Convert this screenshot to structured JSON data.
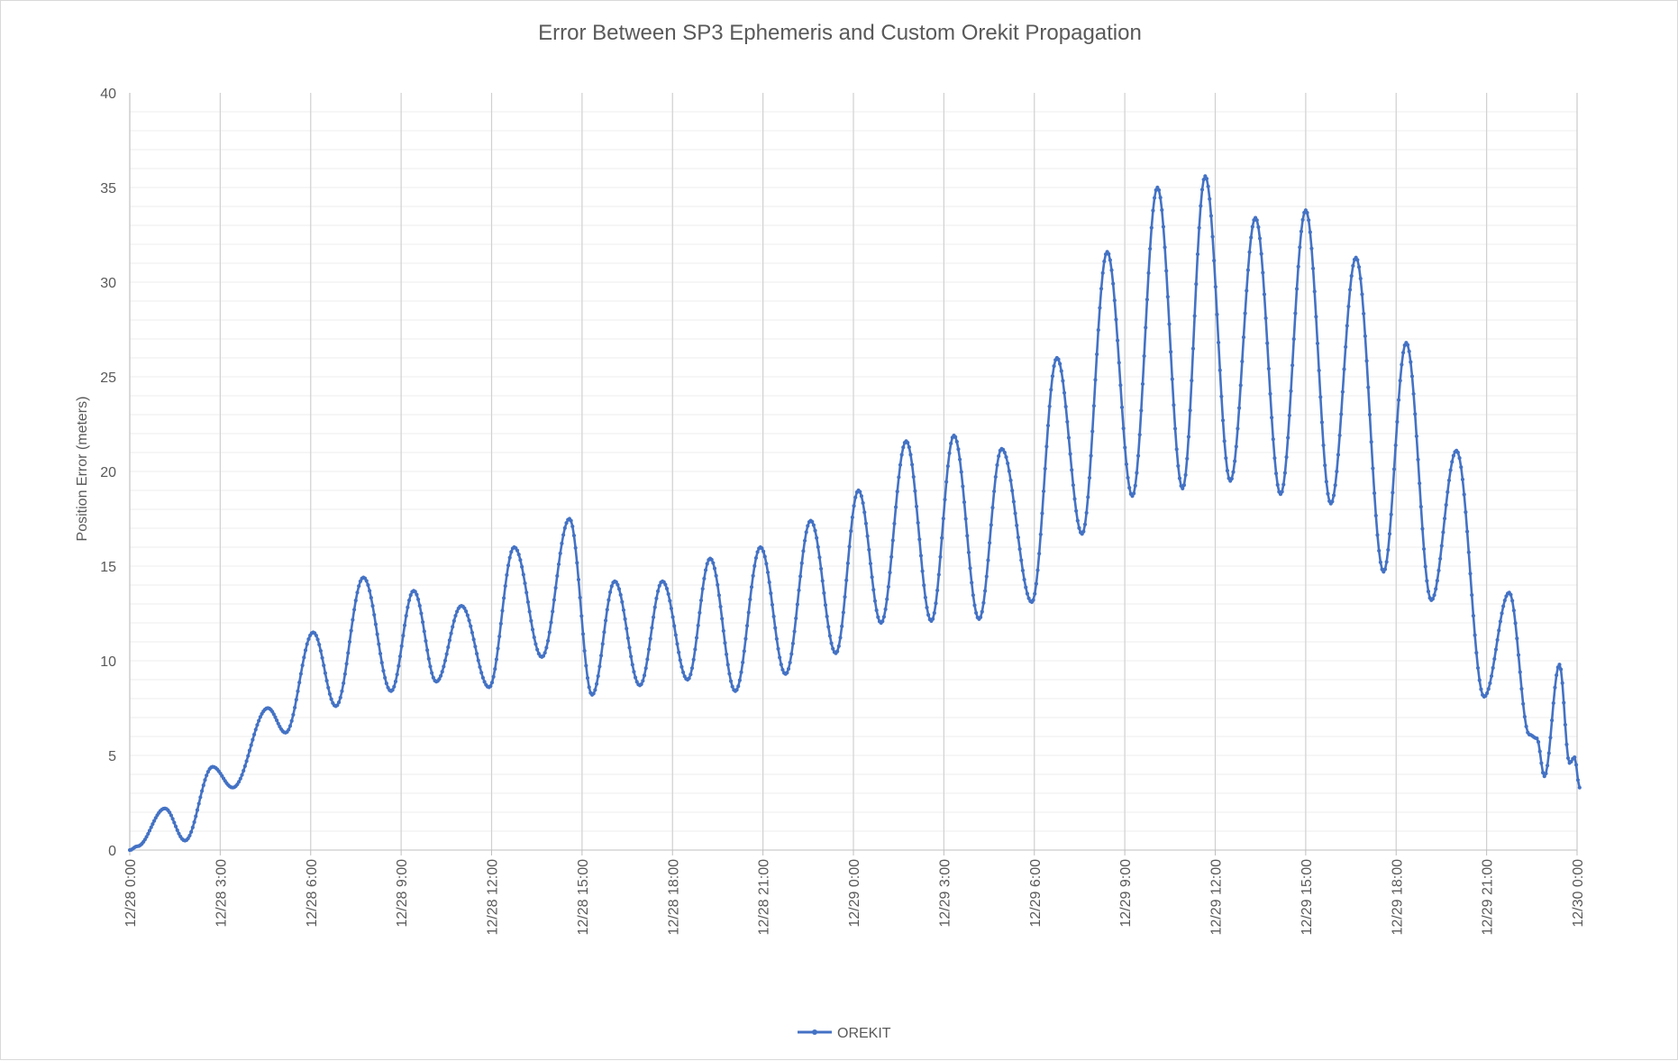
{
  "chart_data": {
    "type": "line",
    "title": "Error Between SP3 Ephemeris and Custom Orekit Propagation",
    "xlabel": "",
    "ylabel": "Position Error (meters)",
    "xlim": [
      "12/28 0:00",
      "12/30 0:00"
    ],
    "ylim": [
      0,
      40
    ],
    "y_ticks": [
      0,
      5,
      10,
      15,
      20,
      25,
      30,
      35,
      40
    ],
    "x_ticks": [
      "12/28 0:00",
      "12/28 3:00",
      "12/28 6:00",
      "12/28 9:00",
      "12/28 12:00",
      "12/28 15:00",
      "12/28 18:00",
      "12/28 21:00",
      "12/29 0:00",
      "12/29 3:00",
      "12/29 6:00",
      "12/29 9:00",
      "12/29 12:00",
      "12/29 15:00",
      "12/29 18:00",
      "12/29 21:00",
      "12/30 0:00"
    ],
    "grid": {
      "vertical_major": true,
      "horizontal_minor": true
    },
    "legend_position": "bottom-center",
    "series": [
      {
        "name": "OREKIT",
        "color": "#4472c4",
        "marker": "circle",
        "points": [
          [
            "12/28 0:00",
            0.0
          ],
          [
            "12/28 0:15",
            0.2
          ],
          [
            "12/28 1:10",
            2.2
          ],
          [
            "12/28 1:50",
            0.5
          ],
          [
            "12/28 2:45",
            4.4
          ],
          [
            "12/28 3:25",
            3.3
          ],
          [
            "12/28 4:35",
            7.5
          ],
          [
            "12/28 5:10",
            6.2
          ],
          [
            "12/28 6:05",
            11.5
          ],
          [
            "12/28 6:50",
            7.6
          ],
          [
            "12/28 7:45",
            14.4
          ],
          [
            "12/28 8:40",
            8.4
          ],
          [
            "12/28 9:25",
            13.7
          ],
          [
            "12/28 10:10",
            8.9
          ],
          [
            "12/28 11:00",
            12.9
          ],
          [
            "12/28 11:55",
            8.6
          ],
          [
            "12/28 12:45",
            16.0
          ],
          [
            "12/28 13:40",
            10.2
          ],
          [
            "12/28 14:35",
            17.5
          ],
          [
            "12/28 15:20",
            8.2
          ],
          [
            "12/28 16:05",
            14.2
          ],
          [
            "12/28 16:55",
            8.7
          ],
          [
            "12/28 17:40",
            14.2
          ],
          [
            "12/28 18:30",
            9.0
          ],
          [
            "12/28 19:15",
            15.4
          ],
          [
            "12/28 20:05",
            8.4
          ],
          [
            "12/28 20:55",
            16.0
          ],
          [
            "12/28 21:45",
            9.3
          ],
          [
            "12/28 22:35",
            17.4
          ],
          [
            "12/28 23:25",
            10.4
          ],
          [
            "12/29 0:10",
            19.0
          ],
          [
            "12/29 0:55",
            12.0
          ],
          [
            "12/29 1:45",
            21.6
          ],
          [
            "12/29 2:35",
            12.1
          ],
          [
            "12/29 3:20",
            21.9
          ],
          [
            "12/29 4:10",
            12.2
          ],
          [
            "12/29 4:55",
            21.2
          ],
          [
            "12/29 5:55",
            13.1
          ],
          [
            "12/29 6:45",
            26.0
          ],
          [
            "12/29 7:35",
            16.7
          ],
          [
            "12/29 8:25",
            31.6
          ],
          [
            "12/29 9:15",
            18.7
          ],
          [
            "12/29 10:05",
            35.0
          ],
          [
            "12/29 10:55",
            19.1
          ],
          [
            "12/29 11:40",
            35.6
          ],
          [
            "12/29 12:30",
            19.5
          ],
          [
            "12/29 13:20",
            33.4
          ],
          [
            "12/29 14:10",
            18.8
          ],
          [
            "12/29 15:00",
            33.8
          ],
          [
            "12/29 15:50",
            18.3
          ],
          [
            "12/29 16:40",
            31.3
          ],
          [
            "12/29 17:35",
            14.7
          ],
          [
            "12/29 18:20",
            26.8
          ],
          [
            "12/29 19:10",
            13.2
          ],
          [
            "12/29 20:00",
            21.1
          ],
          [
            "12/29 20:55",
            8.1
          ],
          [
            "12/29 21:45",
            13.6
          ],
          [
            "12/29 22:25",
            6.1
          ],
          [
            "12/29 22:40",
            5.9
          ],
          [
            "12/29 22:55",
            3.9
          ],
          [
            "12/29 23:25",
            9.8
          ],
          [
            "12/29 23:45",
            4.6
          ],
          [
            "12/29 23:55",
            4.9
          ],
          [
            "12/30 0:05",
            3.3
          ]
        ]
      }
    ]
  }
}
